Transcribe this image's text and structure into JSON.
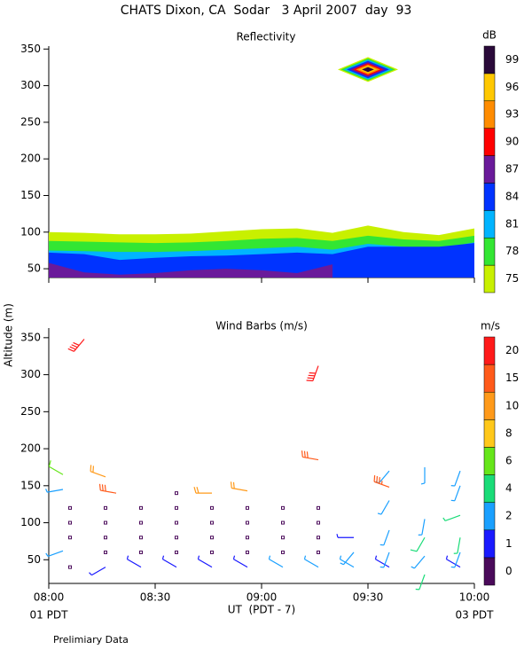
{
  "title": "CHATS Dixon, CA  Sodar   3 April 2007  day  93",
  "footer": "Prelimiary Data",
  "chart_data": [
    {
      "type": "contour",
      "title": "Reflectivity",
      "x": [
        480,
        490,
        500,
        510,
        520,
        530,
        540,
        550,
        560,
        570,
        580,
        590,
        600
      ],
      "xlim": [
        480,
        600
      ],
      "ylim": [
        38,
        354
      ],
      "yticks": [
        50,
        100,
        150,
        200,
        250,
        300,
        350
      ],
      "colorbar": {
        "label": "dB",
        "levels": [
          75,
          78,
          81,
          84,
          87,
          90,
          93,
          96,
          99
        ],
        "colors": [
          "#c8f000",
          "#33e633",
          "#00b4ff",
          "#0033ff",
          "#6a1a9a",
          "#ff0000",
          "#ff8c00",
          "#ffc800",
          "#2a0a3a"
        ]
      },
      "contours": [
        [
          100,
          99,
          97,
          97,
          98,
          101,
          104,
          105,
          99,
          109,
          100,
          96,
          105
        ],
        [
          88,
          87,
          86,
          85,
          86,
          88,
          91,
          92,
          88,
          95,
          90,
          88,
          95
        ],
        [
          75,
          74,
          73,
          73,
          74,
          76,
          78,
          80,
          76,
          84,
          80,
          78,
          86
        ],
        [
          72,
          70,
          62,
          65,
          67,
          68,
          70,
          72,
          70,
          80,
          80,
          80,
          85
        ],
        [
          58,
          45,
          42,
          44,
          48,
          50,
          48,
          44,
          56,
          null,
          null,
          null,
          null
        ]
      ],
      "cells": [
        {
          "x": 570,
          "y": 322
        }
      ]
    },
    {
      "type": "barbs",
      "title": "Wind Barbs (m/s)",
      "ylabel": "Altitude (m)",
      "xlabel": "UT  (PDT - 7)",
      "xlim": [
        480,
        600
      ],
      "ylim": [
        18,
        363
      ],
      "yticks": [
        50,
        100,
        150,
        200,
        250,
        300,
        350
      ],
      "xticks": [
        {
          "value": 480,
          "label": "08:00"
        },
        {
          "value": 510,
          "label": "08:30"
        },
        {
          "value": 540,
          "label": "09:00"
        },
        {
          "value": 570,
          "label": "09:30"
        },
        {
          "value": 600,
          "label": "10:00"
        }
      ],
      "xnotes": [
        "01 PDT",
        "03 PDT"
      ],
      "colorbar": {
        "label": "m/s",
        "levels": [
          0,
          1,
          2,
          4,
          6,
          8,
          10,
          15,
          20
        ],
        "colors": [
          "#4a0a5a",
          "#1a1aff",
          "#1aa0ff",
          "#1adc78",
          "#66e61a",
          "#ffc81a",
          "#ff9a1a",
          "#ff5a1a",
          "#ff1a1a"
        ]
      },
      "barbs": {
        "t": [
          486,
          486,
          486,
          486,
          484,
          484,
          484,
          490,
          496,
          496,
          496,
          496,
          496,
          496,
          499,
          506,
          506,
          506,
          506,
          506,
          516,
          516,
          516,
          516,
          516,
          516,
          526,
          526,
          526,
          526,
          526,
          526,
          536,
          536,
          536,
          536,
          536,
          536,
          546,
          546,
          546,
          546,
          546,
          556,
          556,
          556,
          556,
          556,
          556,
          556,
          566,
          566,
          566,
          576,
          576,
          576,
          576,
          576,
          576,
          586,
          586,
          586,
          586,
          586,
          596,
          596,
          596,
          596,
          596,
          596
        ],
        "z": [
          40,
          80,
          100,
          120,
          62,
          145,
          165,
          348,
          40,
          60,
          80,
          100,
          120,
          162,
          140,
          40,
          60,
          80,
          100,
          120,
          40,
          60,
          80,
          100,
          120,
          140,
          40,
          60,
          80,
          100,
          120,
          140,
          40,
          60,
          80,
          100,
          120,
          143,
          40,
          60,
          80,
          100,
          120,
          40,
          60,
          80,
          100,
          120,
          185,
          312,
          40,
          60,
          80,
          40,
          60,
          90,
          130,
          170,
          148,
          30,
          55,
          80,
          105,
          175,
          40,
          60,
          80,
          110,
          150,
          170
        ],
        "speed": [
          0,
          0,
          0,
          0,
          2,
          3,
          6,
          22,
          1,
          0,
          0,
          0,
          0,
          10,
          16,
          1,
          0,
          0,
          0,
          0,
          1,
          0,
          0,
          0,
          0,
          0,
          1,
          0,
          0,
          0,
          0,
          12,
          1,
          0,
          0,
          0,
          0,
          12,
          2,
          0,
          0,
          0,
          0,
          2,
          0,
          0,
          0,
          0,
          16,
          22,
          2,
          2,
          1,
          1,
          2,
          2,
          3,
          2,
          18,
          4,
          2,
          5,
          3,
          3,
          1,
          3,
          4,
          4,
          3,
          2
        ],
        "dir": [
          0,
          0,
          0,
          0,
          250,
          260,
          300,
          220,
          240,
          0,
          0,
          0,
          0,
          290,
          280,
          300,
          0,
          0,
          0,
          0,
          300,
          0,
          0,
          0,
          0,
          0,
          300,
          0,
          0,
          0,
          0,
          270,
          300,
          0,
          0,
          0,
          0,
          280,
          300,
          0,
          0,
          0,
          0,
          300,
          0,
          0,
          0,
          0,
          280,
          200,
          300,
          220,
          270,
          300,
          200,
          200,
          210,
          220,
          290,
          200,
          220,
          210,
          190,
          180,
          300,
          200,
          190,
          250,
          200,
          200
        ]
      }
    }
  ]
}
